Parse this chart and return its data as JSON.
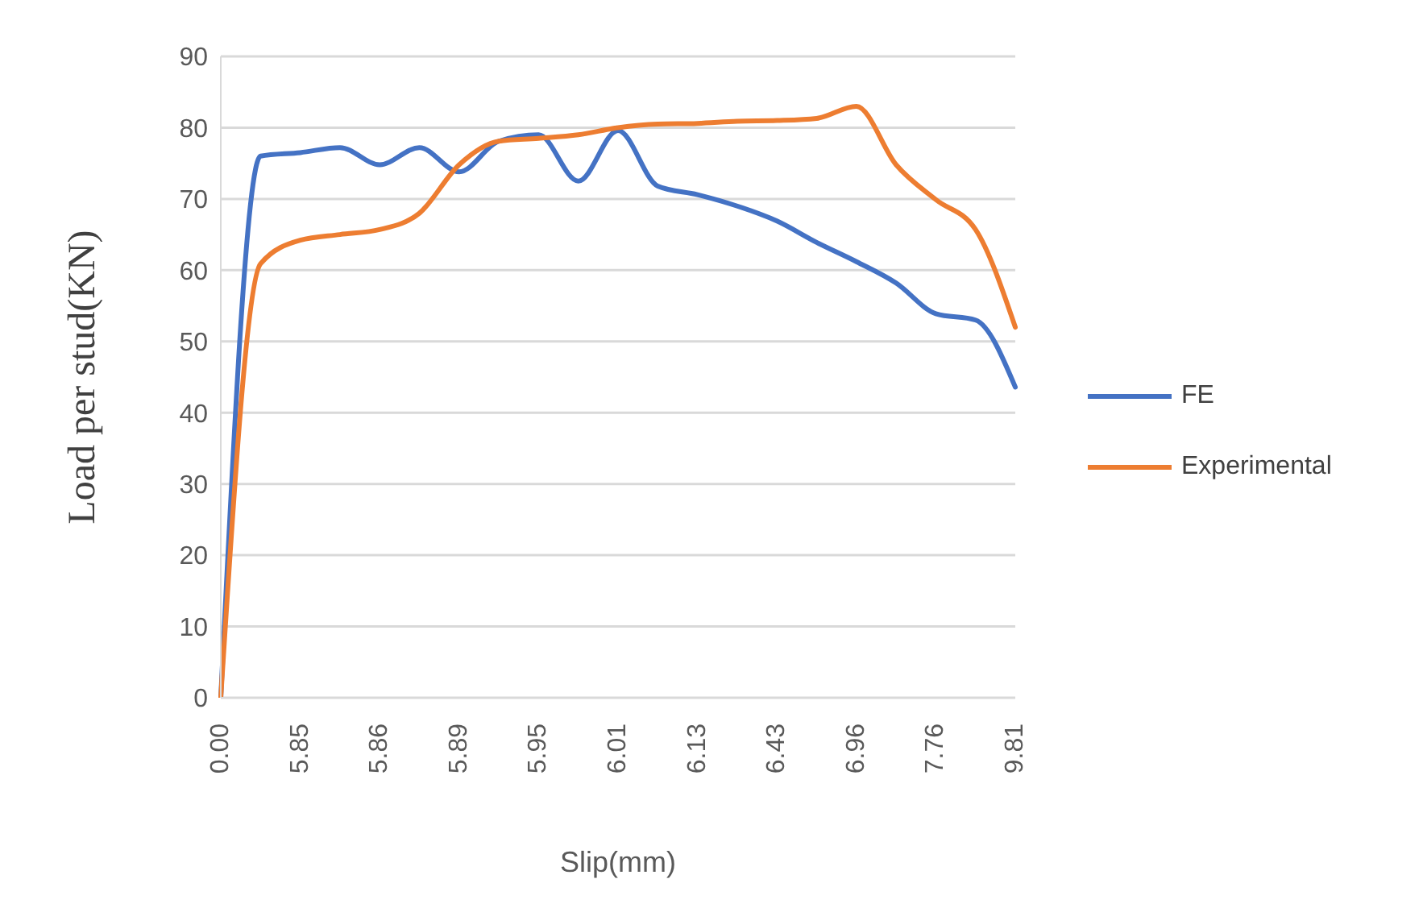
{
  "chart_data": {
    "type": "line",
    "xlabel": "Slip(mm)",
    "ylabel": "Load per stud(KN)",
    "categories": [
      "0.00",
      null,
      "5.85",
      null,
      "5.86",
      null,
      "5.89",
      null,
      "5.95",
      null,
      "6.01",
      null,
      "6.13",
      null,
      "6.43",
      null,
      "6.96",
      null,
      "7.76",
      null,
      "9.81"
    ],
    "series": [
      {
        "name": "FE",
        "color": "#4472c4",
        "values": [
          0,
          76.0,
          76.5,
          77.2,
          74.8,
          77.2,
          73.8,
          78.1,
          79.0,
          72.5,
          79.6,
          71.8,
          70.6,
          69.0,
          66.9,
          63.9,
          61.2,
          58.2,
          53.9,
          53.0,
          43.6
        ]
      },
      {
        "name": "Experimental",
        "color": "#ed7d31",
        "values": [
          0,
          60.9,
          64.2,
          65.0,
          65.7,
          68.0,
          74.8,
          78.1,
          78.5,
          79.0,
          80.0,
          80.5,
          80.6,
          80.9,
          81.0,
          81.3,
          83.0,
          74.8,
          69.9,
          65.7,
          52.0
        ]
      }
    ],
    "ylim": [
      0,
      90
    ],
    "yticks": [
      0,
      10,
      20,
      30,
      40,
      50,
      60,
      70,
      80,
      90
    ],
    "grid": "y",
    "legend": "right",
    "marker": "none",
    "line_style": "solid"
  }
}
